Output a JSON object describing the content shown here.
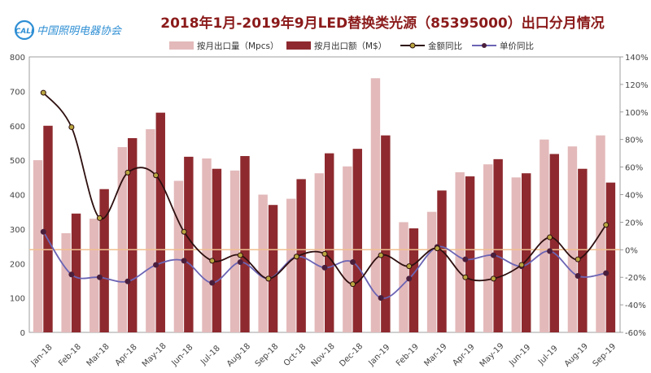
{
  "header": {
    "logo_text": "中国照明电器协会",
    "logo_mark": "CALI",
    "title": "2018年1月-2019年9月LED替换类光源（85395000）出口分月情况"
  },
  "colors": {
    "title": "#8b1a1a",
    "volume_bar": "#e3b9ba",
    "amount_bar": "#8e2a2f",
    "amount_yoy_line": "#2e0f0f",
    "amount_yoy_marker": "#b9a640",
    "price_yoy_line": "#6b64b4",
    "price_yoy_marker": "#4a1f3c",
    "zero_line": "#f0c090",
    "axis_text": "#444444",
    "logo": "#2f8fd4"
  },
  "chart_data": {
    "type": "bar",
    "categories": [
      "Jan-18",
      "Feb-18",
      "Mar-18",
      "Apr-18",
      "May-18",
      "Jun-18",
      "Jul-18",
      "Aug-18",
      "Sep-18",
      "Oct-18",
      "Nov-18",
      "Dec-18",
      "Jan-19",
      "Feb-19",
      "Mar-19",
      "Apr-19",
      "May-19",
      "Jun-19",
      "Jul-19",
      "Aug-19",
      "Sep-19"
    ],
    "series": [
      {
        "name": "按月出口量（Mpcs）",
        "kind": "bar",
        "axis": "left",
        "values": [
          500,
          288,
          330,
          538,
          590,
          440,
          505,
          470,
          400,
          388,
          462,
          482,
          738,
          320,
          350,
          465,
          488,
          450,
          560,
          540,
          572
        ]
      },
      {
        "name": "按月出口额（M$）",
        "kind": "bar",
        "axis": "left",
        "values": [
          600,
          345,
          416,
          564,
          638,
          510,
          475,
          512,
          370,
          445,
          520,
          533,
          572,
          302,
          412,
          453,
          503,
          462,
          518,
          475,
          435
        ]
      },
      {
        "name": "金额同比",
        "kind": "line",
        "axis": "right",
        "values": [
          114,
          89,
          23,
          56,
          54,
          13,
          -8,
          -4,
          -21,
          -5,
          -3,
          -25,
          -4,
          -12,
          1,
          -20,
          -21,
          -11,
          9,
          -7,
          18
        ]
      },
      {
        "name": "单价同比",
        "kind": "line",
        "axis": "right",
        "values": [
          13,
          -18,
          -20,
          -23,
          -11,
          -8,
          -24,
          -9,
          -21,
          -5,
          -13,
          -9,
          -35,
          -21,
          2,
          -7,
          -4,
          -12,
          -1,
          -19,
          -17
        ]
      }
    ],
    "left_axis": {
      "min": 0,
      "max": 800,
      "ticks": [
        0,
        100,
        200,
        300,
        400,
        500,
        600,
        700,
        800
      ]
    },
    "right_axis": {
      "min": -60,
      "max": 140,
      "ticks": [
        "-60%",
        "-40%",
        "-20%",
        "0%",
        "20%",
        "40%",
        "60%",
        "80%",
        "100%",
        "120%",
        "140%"
      ]
    },
    "legend_position": "top",
    "grid": false
  }
}
